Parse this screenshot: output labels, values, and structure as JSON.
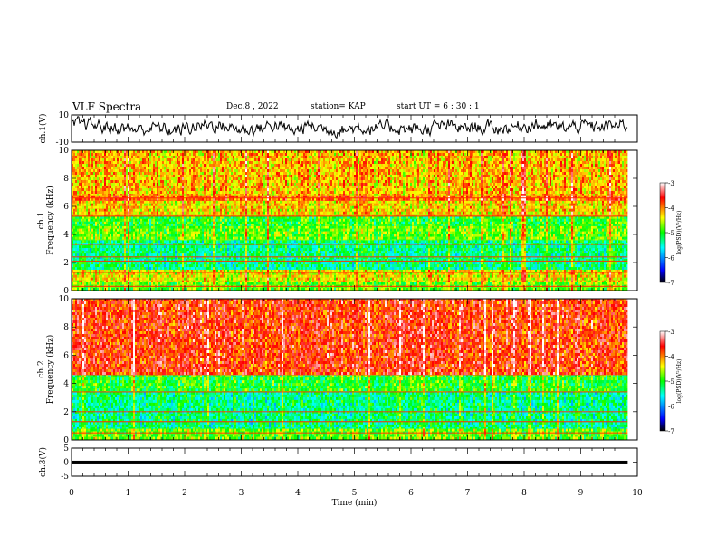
{
  "header": {
    "title": "VLF Spectra",
    "date": "Dec.8 , 2022",
    "station": "station= KAP",
    "start": "start UT = 6 : 30 : 1"
  },
  "chart_data": [
    {
      "type": "line",
      "name": "ch1-waveform",
      "ylabel": "ch.1(V)",
      "ylim": [
        -10,
        10
      ],
      "yticks": [
        "10",
        "-10"
      ],
      "x_range": [
        0,
        9.83
      ],
      "trend": [
        [
          0.0,
          2
        ],
        [
          0.3,
          3
        ],
        [
          0.6,
          1
        ],
        [
          0.9,
          0
        ],
        [
          1.2,
          -1
        ],
        [
          1.5,
          1
        ],
        [
          1.8,
          -2
        ],
        [
          2.1,
          1
        ],
        [
          2.4,
          3
        ],
        [
          2.7,
          2
        ],
        [
          3.0,
          -1
        ],
        [
          3.3,
          0
        ],
        [
          3.6,
          3
        ],
        [
          3.9,
          -2
        ],
        [
          4.2,
          2
        ],
        [
          4.5,
          0
        ],
        [
          4.8,
          -1
        ],
        [
          5.1,
          1
        ],
        [
          5.4,
          0
        ],
        [
          5.7,
          1
        ],
        [
          6.0,
          -1
        ],
        [
          6.3,
          0
        ],
        [
          6.6,
          2
        ],
        [
          6.9,
          0
        ],
        [
          7.2,
          1
        ],
        [
          7.5,
          0
        ],
        [
          7.8,
          1
        ],
        [
          8.1,
          3
        ],
        [
          8.4,
          2
        ],
        [
          8.7,
          0
        ],
        [
          9.0,
          2
        ],
        [
          9.3,
          1
        ],
        [
          9.6,
          2
        ],
        [
          9.83,
          3
        ]
      ]
    },
    {
      "type": "heatmap",
      "name": "ch1-spectrogram",
      "ylabel": "ch.1 Frequency (kHz)",
      "ylim": [
        0,
        10
      ],
      "yticks": [
        "0",
        "2",
        "4",
        "6",
        "8",
        "10"
      ],
      "x_range": [
        0,
        9.83
      ],
      "bands_khz": [
        {
          "from": 0.0,
          "to": 0.6,
          "level": -4.8
        },
        {
          "from": 0.6,
          "to": 1.5,
          "level": -4.4
        },
        {
          "from": 1.5,
          "to": 3.6,
          "level": -5.3
        },
        {
          "from": 3.6,
          "to": 4.6,
          "level": -4.8
        },
        {
          "from": 4.6,
          "to": 5.3,
          "level": -5.0
        },
        {
          "from": 5.3,
          "to": 6.4,
          "level": -4.3
        },
        {
          "from": 6.4,
          "to": 6.8,
          "level": -3.9
        },
        {
          "from": 6.8,
          "to": 10.0,
          "level": -4.2
        }
      ],
      "lines_khz": [
        0.3,
        1.3,
        2.1,
        2.4,
        3.3,
        5.3,
        6.6
      ],
      "colorbar": {
        "min": -7,
        "max": -3,
        "ticks": [
          "-3",
          "-4",
          "-5",
          "-6",
          "-7"
        ],
        "label": "log(PSD)(V²/Hz)"
      }
    },
    {
      "type": "heatmap",
      "name": "ch2-spectrogram",
      "ylabel": "ch.2 Frequency (kHz)",
      "ylim": [
        0,
        10
      ],
      "yticks": [
        "0",
        "2",
        "4",
        "6",
        "8",
        "10"
      ],
      "x_range": [
        0,
        9.83
      ],
      "bands_khz": [
        {
          "from": 0.0,
          "to": 0.8,
          "level": -4.8
        },
        {
          "from": 0.8,
          "to": 3.4,
          "level": -5.3
        },
        {
          "from": 3.4,
          "to": 4.6,
          "level": -5.0
        },
        {
          "from": 4.6,
          "to": 10.0,
          "level": -3.7
        }
      ],
      "lines_khz": [
        0.5,
        1.3,
        2.0,
        3.4
      ],
      "colorbar": {
        "min": -7,
        "max": -3,
        "ticks": [
          "-3",
          "-4",
          "-5",
          "-6",
          "-7"
        ],
        "label": "log(PSD)(V²/Hz)"
      }
    },
    {
      "type": "line",
      "name": "ch3-waveform",
      "ylabel": "ch.3(V)",
      "ylim": [
        -5,
        5
      ],
      "yticks": [
        "5",
        "0",
        "-5"
      ],
      "x_range": [
        0,
        9.83
      ],
      "level_v": 0,
      "band_halfwidth_v": 0.5
    }
  ],
  "xaxis": {
    "label": "Time (min)",
    "ticks": [
      "0",
      "1",
      "2",
      "3",
      "4",
      "5",
      "6",
      "7",
      "8",
      "9",
      "10"
    ],
    "xlim": [
      0,
      10
    ]
  },
  "colors": {
    "axis": "#000000",
    "waveform": "#000000",
    "colormap": [
      "#000000",
      "#0000ff",
      "#00ffff",
      "#00ff00",
      "#ffff00",
      "#ff0000",
      "#ffffff"
    ]
  }
}
